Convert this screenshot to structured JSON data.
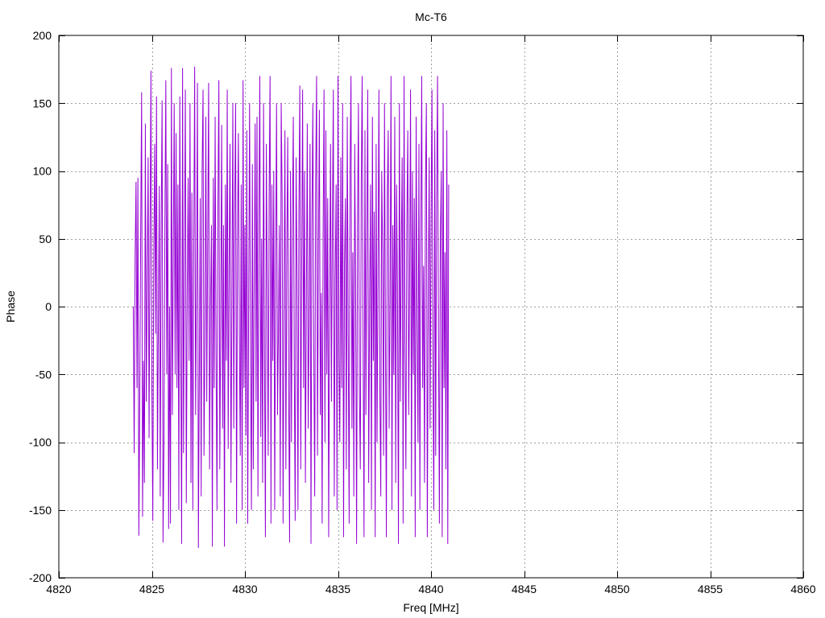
{
  "chart_data": {
    "type": "line",
    "title": "Mc-T6",
    "xlabel": "Freq [MHz]",
    "ylabel": "Phase",
    "xlim": [
      4820,
      4860
    ],
    "ylim": [
      -200,
      200
    ],
    "x_ticks": [
      4820,
      4825,
      4830,
      4835,
      4840,
      4845,
      4850,
      4855,
      4860
    ],
    "y_ticks": [
      -200,
      -150,
      -100,
      -50,
      0,
      50,
      100,
      150,
      200
    ],
    "grid": true,
    "line_color": "#9400d3",
    "series": [
      {
        "x_start": 4824.0,
        "x_step": 0.05,
        "values": [
          0,
          -108,
          37,
          92,
          -60,
          95,
          -169,
          -68,
          56,
          158,
          -155,
          -40,
          -130,
          135,
          -70,
          18,
          110,
          -97,
          48,
          174,
          -60,
          -158,
          30,
          120,
          -20,
          155,
          -120,
          -10,
          89,
          -140,
          60,
          152,
          -174,
          -100,
          60,
          167,
          -50,
          105,
          -164,
          0,
          -160,
          176,
          -80,
          33,
          150,
          -50,
          128,
          -60,
          90,
          -150,
          155,
          -17,
          -175,
          176,
          -108,
          40,
          160,
          -145,
          10,
          95,
          -40,
          150,
          -130,
          84,
          -150,
          40,
          177,
          -80,
          17,
          165,
          -178,
          -50,
          80,
          -140,
          100,
          160,
          -110,
          -30,
          140,
          -70,
          50,
          165,
          -120,
          0,
          60,
          -177,
          95,
          -60,
          140,
          -35,
          -150,
          75,
          167,
          -120,
          -10,
          134,
          -90,
          60,
          -177,
          90,
          -40,
          160,
          -105,
          30,
          120,
          -130,
          0,
          150,
          -90,
          70,
          150,
          -160,
          50,
          128,
          -20,
          -110,
          90,
          -150,
          167,
          -60,
          60,
          -95,
          130,
          -160,
          0,
          150,
          -40,
          -150,
          105,
          -120,
          20,
          135,
          -70,
          140,
          -140,
          60,
          170,
          -96,
          50,
          -130,
          150,
          -30,
          -170,
          120,
          10,
          -110,
          80,
          170,
          -160,
          90,
          -40,
          100,
          -150,
          30,
          150,
          -80,
          -20,
          60,
          -140,
          150,
          80,
          -160,
          0,
          130,
          -120,
          40,
          125,
          -60,
          -174,
          100,
          -100,
          60,
          140,
          -40,
          -158,
          110,
          20,
          -150,
          70,
          163,
          -120,
          30,
          160,
          -60,
          100,
          -130,
          0,
          135,
          -90,
          -10,
          120,
          -175,
          60,
          150,
          -30,
          -140,
          90,
          170,
          -110,
          40,
          145,
          -80,
          10,
          -160,
          50,
          160,
          -100,
          130,
          -50,
          80,
          -170,
          0,
          120,
          -70,
          60,
          160,
          -140,
          20,
          90,
          -150,
          170,
          -40,
          -100,
          110,
          -60,
          150,
          -170,
          30,
          80,
          -120,
          140,
          -20,
          -160,
          100,
          170,
          -90,
          40,
          -140,
          120,
          10,
          -175,
          60,
          150,
          -60,
          -120,
          90,
          170,
          -30,
          -170,
          130,
          -80,
          50,
          160,
          -130,
          0,
          90,
          -150,
          140,
          -40,
          70,
          -170,
          120,
          -100,
          20,
          160,
          -60,
          -140,
          100,
          40,
          -110,
          150,
          -20,
          -170,
          80,
          130,
          -90,
          10,
          170,
          -150,
          60,
          -50,
          140,
          -130,
          90,
          0,
          -175,
          150,
          -70,
          40,
          110,
          -160,
          170,
          -30,
          -120,
          60,
          130,
          -80,
          20,
          160,
          -140,
          100,
          -50,
          80,
          -170,
          140,
          -10,
          -100,
          120,
          -150,
          50,
          170,
          -60,
          30,
          -130,
          90,
          150,
          -170,
          0,
          110,
          -90,
          60,
          160,
          -40,
          -150,
          130,
          -110,
          80,
          170,
          -20,
          -160,
          50,
          100,
          -170,
          150,
          -60,
          40,
          -120,
          130,
          -175,
          90
        ]
      }
    ]
  }
}
